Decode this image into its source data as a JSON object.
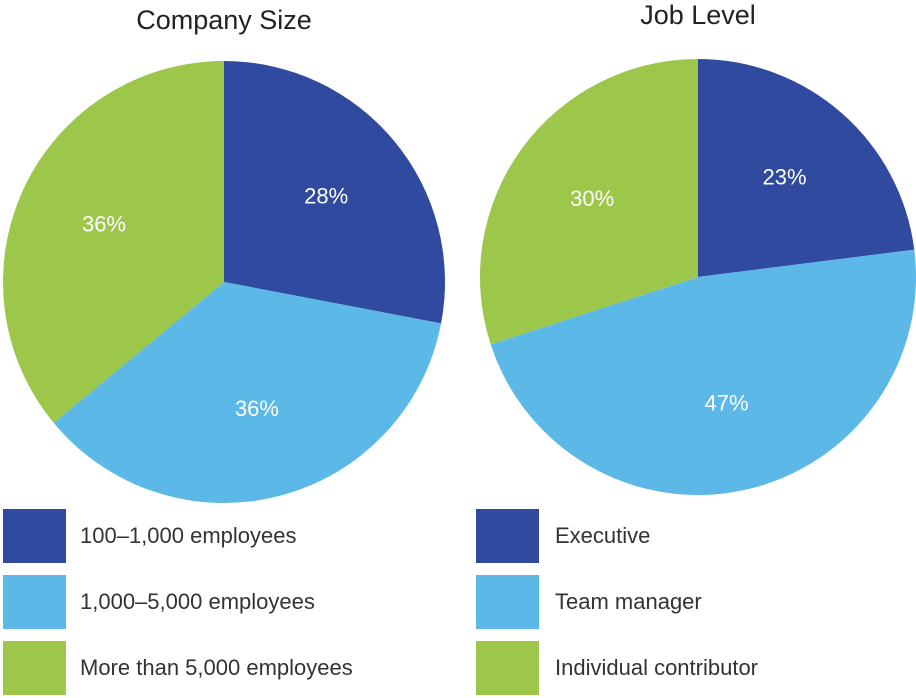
{
  "chart_data": [
    {
      "type": "pie",
      "title": "Company Size",
      "categories": [
        "100–1,000 employees",
        "1,000–5,000 employees",
        "More than 5,000 employees"
      ],
      "values": [
        28,
        36,
        36
      ],
      "value_labels": [
        "28%",
        "36%",
        "36%"
      ],
      "colors": [
        "#2f4a9e",
        "#5cb8e6",
        "#9cc74b"
      ]
    },
    {
      "type": "pie",
      "title": "Job Level",
      "categories": [
        "Executive",
        "Team manager",
        "Individual contributor"
      ],
      "values": [
        23,
        47,
        30
      ],
      "value_labels": [
        "23%",
        "47%",
        "30%"
      ],
      "colors": [
        "#2f4a9e",
        "#5cb8e6",
        "#9cc74b"
      ]
    }
  ]
}
